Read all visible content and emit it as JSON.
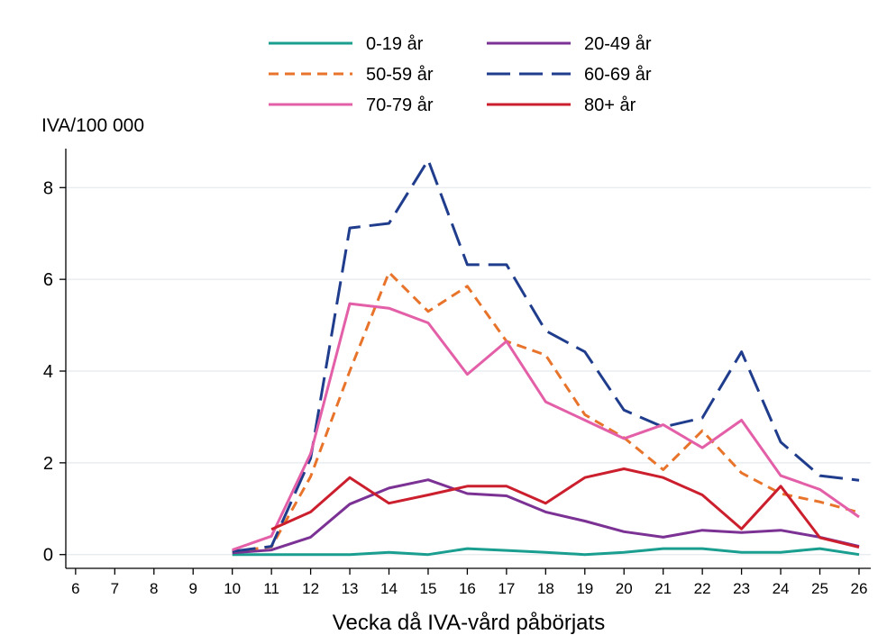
{
  "chart_data": {
    "type": "line",
    "title": "",
    "ylabel": "IVA/100 000",
    "xlabel": "Vecka då IVA-vård påbörjats",
    "x": [
      10,
      11,
      12,
      13,
      14,
      15,
      16,
      17,
      18,
      19,
      20,
      21,
      22,
      23,
      24,
      25,
      26
    ],
    "xticks": [
      6,
      7,
      8,
      9,
      10,
      11,
      12,
      13,
      14,
      15,
      16,
      17,
      18,
      19,
      20,
      21,
      22,
      23,
      24,
      25,
      26
    ],
    "xlim": [
      5.75,
      26.3
    ],
    "ylim": [
      -0.3,
      8.85
    ],
    "yticks": [
      0,
      2,
      4,
      6,
      8
    ],
    "grid": true,
    "legend_position": "top",
    "series": [
      {
        "name": "0-19 år",
        "color": "#1a9e8f",
        "dash": "solid",
        "values": [
          0.0,
          0.0,
          0.0,
          0.0,
          0.05,
          0.0,
          0.13,
          0.09,
          0.05,
          0.0,
          0.05,
          0.13,
          0.13,
          0.05,
          0.05,
          0.13,
          0.0
        ]
      },
      {
        "name": "20-49 år",
        "color": "#7b3294",
        "dash": "solid",
        "values": [
          0.04,
          0.1,
          0.38,
          1.1,
          1.45,
          1.63,
          1.33,
          1.28,
          0.93,
          0.73,
          0.5,
          0.38,
          0.53,
          0.48,
          0.53,
          0.38,
          0.18
        ]
      },
      {
        "name": "50-59 år",
        "color": "#e8742c",
        "dash": "short",
        "values": [
          0.07,
          0.17,
          1.7,
          4.0,
          6.15,
          5.3,
          5.85,
          4.65,
          4.35,
          3.05,
          2.55,
          1.85,
          2.7,
          1.78,
          1.33,
          1.15,
          0.92
        ]
      },
      {
        "name": "60-69 år",
        "color": "#1f3d8c",
        "dash": "long",
        "values": [
          0.07,
          0.18,
          2.1,
          7.12,
          7.22,
          8.6,
          6.32,
          6.32,
          4.88,
          4.42,
          3.15,
          2.78,
          2.98,
          4.42,
          2.45,
          1.72,
          1.62
        ]
      },
      {
        "name": "70-79 år",
        "color": "#e35fa8",
        "dash": "solid",
        "values": [
          0.1,
          0.4,
          2.2,
          5.47,
          5.37,
          5.05,
          3.93,
          4.65,
          3.33,
          2.93,
          2.53,
          2.83,
          2.33,
          2.93,
          1.72,
          1.42,
          0.82
        ]
      },
      {
        "name": "80+ år",
        "color": "#cc1f2e",
        "dash": "solid",
        "values": [
          null,
          0.55,
          0.93,
          1.68,
          1.12,
          1.3,
          1.49,
          1.49,
          1.12,
          1.68,
          1.87,
          1.68,
          1.3,
          0.56,
          1.49,
          0.37,
          0.16
        ]
      }
    ]
  }
}
